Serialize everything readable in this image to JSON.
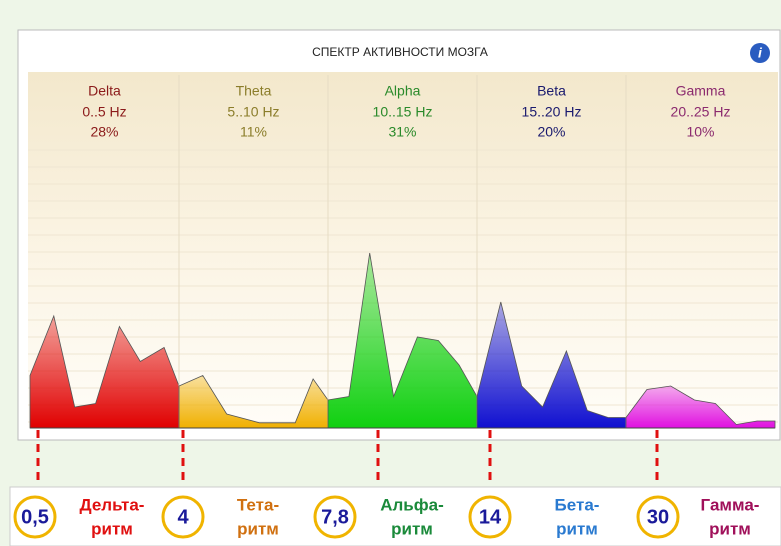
{
  "chart_data": {
    "type": "area",
    "title": "СПЕКТР АКТИВНОСТИ МОЗГА",
    "xlim": [
      0,
      25
    ],
    "ylim": [
      0,
      100
    ],
    "series": [
      {
        "name": "Delta",
        "range": "0..5 Hz",
        "share": 28,
        "share_label": "28%",
        "color": "#e00000",
        "label_color": "#8b1a1a",
        "x": [
          0,
          0.8,
          1.5,
          2.2,
          3,
          3.7,
          4.5,
          5
        ],
        "values": [
          15,
          32,
          6,
          7,
          29,
          19,
          23,
          12
        ]
      },
      {
        "name": "Theta",
        "range": "5..10 Hz",
        "share": 11,
        "share_label": "11%",
        "color": "#f0b000",
        "label_color": "#8b7d2a",
        "x": [
          5,
          5.8,
          6.6,
          7.7,
          8.9,
          9.5,
          10
        ],
        "values": [
          12,
          15,
          4,
          1.5,
          1.5,
          14,
          8
        ]
      },
      {
        "name": "Alpha",
        "range": "10..15 Hz",
        "share": 31,
        "share_label": "31%",
        "color": "#10d010",
        "label_color": "#2a8a2a",
        "x": [
          10,
          10.7,
          11.4,
          12.2,
          13,
          13.7,
          14.4,
          15
        ],
        "values": [
          8,
          9,
          50,
          9,
          26,
          25,
          18,
          9
        ]
      },
      {
        "name": "Beta",
        "range": "15..20 Hz",
        "share": 20,
        "share_label": "20%",
        "color": "#1010d0",
        "label_color": "#1a1a6e",
        "x": [
          15,
          15.8,
          16.5,
          17.2,
          18,
          18.7,
          19.4,
          20
        ],
        "values": [
          9,
          36,
          12,
          6,
          22,
          5,
          3,
          3
        ]
      },
      {
        "name": "Gamma",
        "range": "20..25 Hz",
        "share": 10,
        "share_label": "10%",
        "color": "#e010e0",
        "label_color": "#8b2a6e",
        "x": [
          20,
          20.7,
          21.5,
          22.3,
          23,
          23.7,
          24.4,
          25
        ],
        "values": [
          3,
          11,
          12,
          8,
          7,
          1,
          2,
          2
        ]
      }
    ]
  },
  "rhythms": [
    {
      "marker": "0,5",
      "name": "Дельта-",
      "suffix": "ритм",
      "color": "#e01010"
    },
    {
      "marker": "4",
      "name": "Тета-",
      "suffix": "ритм",
      "color": "#d07010"
    },
    {
      "marker": "7,8",
      "name": "Альфа-",
      "suffix": "ритм",
      "color": "#1a8a3a"
    },
    {
      "marker": "14",
      "name": "Бета-",
      "suffix": "ритм",
      "color": "#2a7ad0"
    },
    {
      "marker": "30",
      "name": "Гамма-",
      "suffix": "ритм",
      "color": "#a0105a"
    }
  ]
}
